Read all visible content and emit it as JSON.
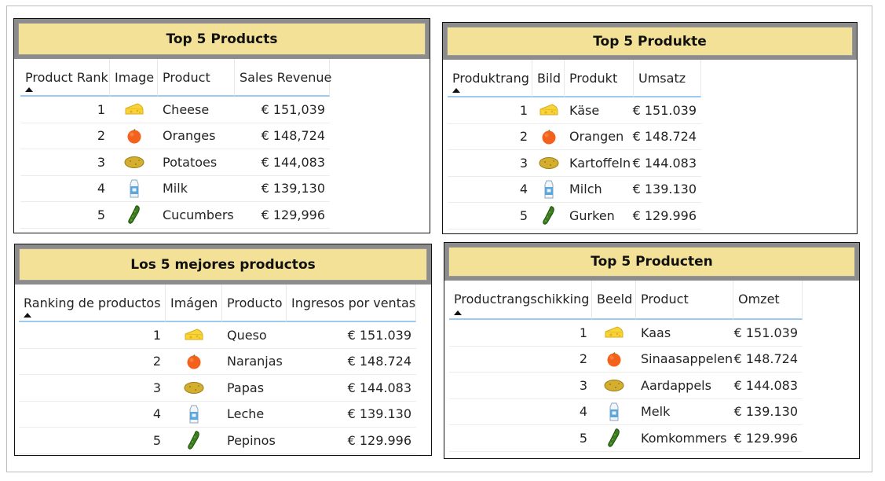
{
  "panels": [
    {
      "title": "Top 5 Products",
      "headers": [
        "Product Rank",
        "Image",
        "Product",
        "Sales Revenue"
      ],
      "rows": [
        {
          "rank": "1",
          "icon": "cheese-icon",
          "product": "Cheese",
          "revenue": "€ 151,039"
        },
        {
          "rank": "2",
          "icon": "orange-icon",
          "product": "Oranges",
          "revenue": "€ 148,724"
        },
        {
          "rank": "3",
          "icon": "potato-icon",
          "product": "Potatoes",
          "revenue": "€ 144,083"
        },
        {
          "rank": "4",
          "icon": "milk-icon",
          "product": "Milk",
          "revenue": "€ 139,130"
        },
        {
          "rank": "5",
          "icon": "cucumber-icon",
          "product": "Cucumbers",
          "revenue": "€ 129,996"
        }
      ]
    },
    {
      "title": "Top 5 Produkte",
      "headers": [
        "Produktrang",
        "Bild",
        "Produkt",
        "Umsatz"
      ],
      "rows": [
        {
          "rank": "1",
          "icon": "cheese-icon",
          "product": "Käse",
          "revenue": "€ 151.039"
        },
        {
          "rank": "2",
          "icon": "orange-icon",
          "product": "Orangen",
          "revenue": "€ 148.724"
        },
        {
          "rank": "3",
          "icon": "potato-icon",
          "product": "Kartoffeln",
          "revenue": "€ 144.083"
        },
        {
          "rank": "4",
          "icon": "milk-icon",
          "product": "Milch",
          "revenue": "€ 139.130"
        },
        {
          "rank": "5",
          "icon": "cucumber-icon",
          "product": "Gurken",
          "revenue": "€ 129.996"
        }
      ]
    },
    {
      "title": "Los 5 mejores productos",
      "headers": [
        "Ranking de productos",
        "Imágen",
        "Producto",
        "Ingresos por ventas"
      ],
      "rows": [
        {
          "rank": "1",
          "icon": "cheese-icon",
          "product": "Queso",
          "revenue": "€ 151.039"
        },
        {
          "rank": "2",
          "icon": "orange-icon",
          "product": "Naranjas",
          "revenue": "€ 148.724"
        },
        {
          "rank": "3",
          "icon": "potato-icon",
          "product": "Papas",
          "revenue": "€ 144.083"
        },
        {
          "rank": "4",
          "icon": "milk-icon",
          "product": "Leche",
          "revenue": "€ 139.130"
        },
        {
          "rank": "5",
          "icon": "cucumber-icon",
          "product": "Pepinos",
          "revenue": "€ 129.996"
        }
      ]
    },
    {
      "title": "Top 5 Producten",
      "headers": [
        "Productrangschikking",
        "Beeld",
        "Product",
        "Omzet"
      ],
      "rows": [
        {
          "rank": "1",
          "icon": "cheese-icon",
          "product": "Kaas",
          "revenue": "€ 151.039"
        },
        {
          "rank": "2",
          "icon": "orange-icon",
          "product": "Sinaasappelen",
          "revenue": "€ 148.724"
        },
        {
          "rank": "3",
          "icon": "potato-icon",
          "product": "Aardappels",
          "revenue": "€ 144.083"
        },
        {
          "rank": "4",
          "icon": "milk-icon",
          "product": "Melk",
          "revenue": "€ 139.130"
        },
        {
          "rank": "5",
          "icon": "cucumber-icon",
          "product": "Komkommers",
          "revenue": "€ 129.996"
        }
      ]
    }
  ],
  "colors": {
    "title_fill": "#f2e196",
    "title_frame": "#8c8c8c",
    "header_underline": "#9ccaf0"
  }
}
